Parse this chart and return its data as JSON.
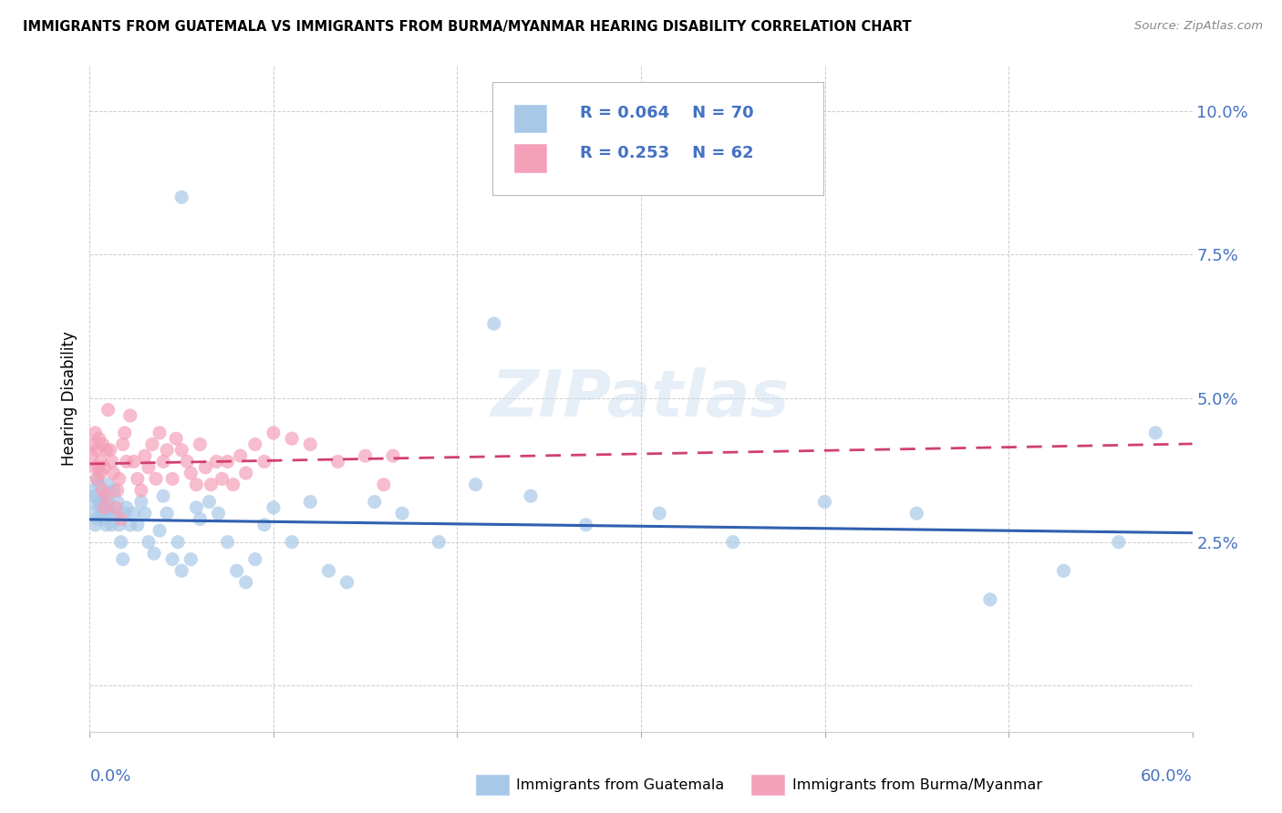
{
  "title": "IMMIGRANTS FROM GUATEMALA VS IMMIGRANTS FROM BURMA/MYANMAR HEARING DISABILITY CORRELATION CHART",
  "source": "Source: ZipAtlas.com",
  "ylabel": "Hearing Disability",
  "yticks": [
    0.0,
    0.025,
    0.05,
    0.075,
    0.1
  ],
  "ytick_labels": [
    "",
    "2.5%",
    "5.0%",
    "7.5%",
    "10.0%"
  ],
  "xtick_labels": [
    "0.0%",
    "",
    "",
    "",
    "",
    "",
    "60.0%"
  ],
  "xmin": 0.0,
  "xmax": 0.6,
  "ymin": -0.008,
  "ymax": 0.108,
  "color_guatemala": "#a8c8e8",
  "color_burma": "#f4a0b8",
  "color_blue_text": "#4472C4",
  "trendline_guatemala_color": "#3060b0",
  "trendline_burma_color": "#d04070",
  "watermark_color": "#e0e8f0",
  "background_color": "#ffffff"
}
